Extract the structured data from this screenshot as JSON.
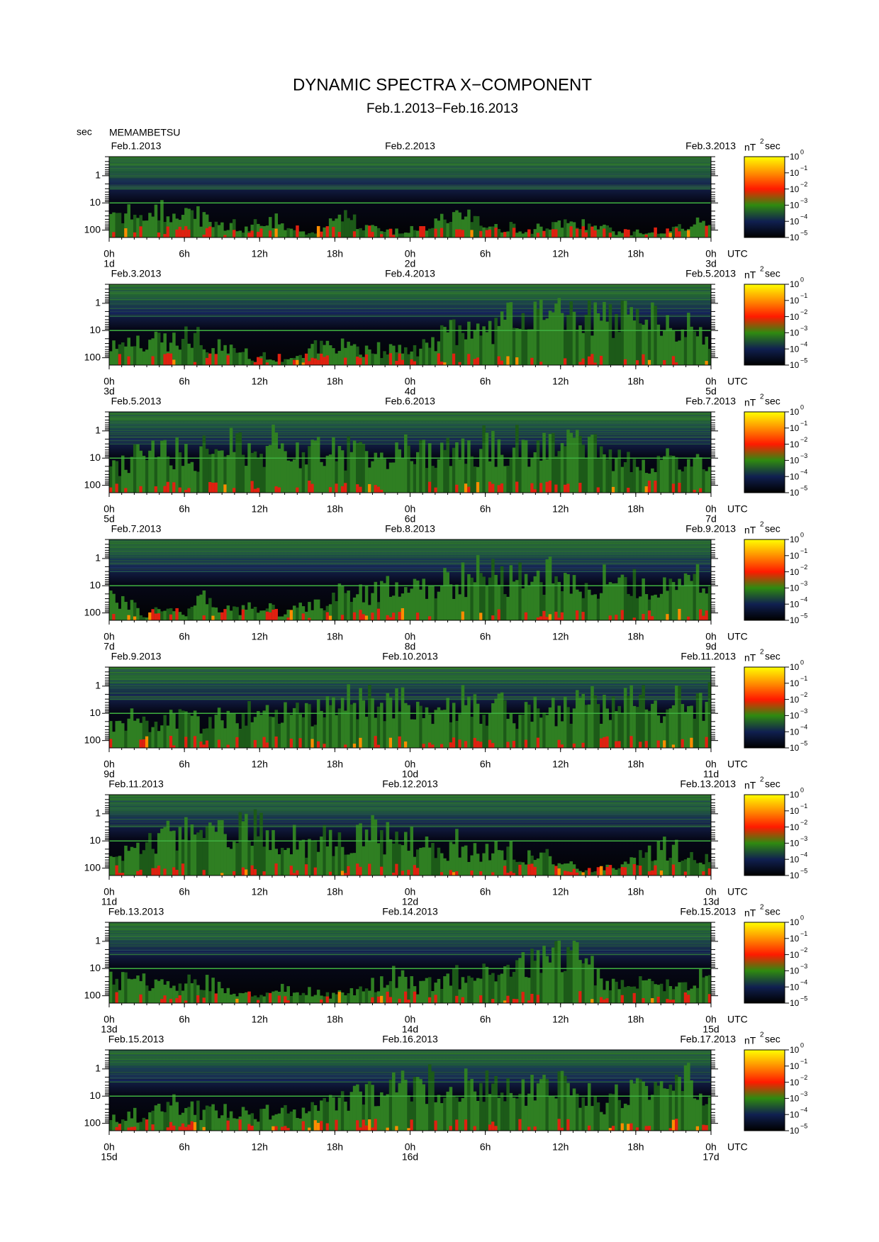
{
  "title": "DYNAMIC SPECTRA X−COMPONENT",
  "subtitle": "Feb.1.2013−Feb.16.2013",
  "y_unit": "sec",
  "station": "MEMAMBETSU",
  "time_zone": "UTC",
  "y_ticks": [
    1,
    10,
    100
  ],
  "x_tick_labels": [
    "0h",
    "6h",
    "12h",
    "18h",
    "0h",
    "6h",
    "12h",
    "18h",
    "0h"
  ],
  "colorbar_unit": {
    "main": "nT",
    "sup": "2",
    "tail": "sec"
  },
  "colorbar_ticks": [
    {
      "base": "10",
      "exponent": "0"
    },
    {
      "base": "10",
      "exponent": "−1"
    },
    {
      "base": "10",
      "exponent": "−2"
    },
    {
      "base": "10",
      "exponent": "−3"
    },
    {
      "base": "10",
      "exponent": "−4"
    },
    {
      "base": "10",
      "exponent": "−5"
    }
  ],
  "panels": [
    {
      "start_date": "Feb.1.2013",
      "mid_date": "Feb.2.2013",
      "end_date": "Feb.3.2013",
      "start_day": "1d",
      "mid_day": "2d",
      "end_day": "3d"
    },
    {
      "start_date": "Feb.3.2013",
      "mid_date": "Feb.4.2013",
      "end_date": "Feb.5.2013",
      "start_day": "3d",
      "mid_day": "4d",
      "end_day": "5d"
    },
    {
      "start_date": "Feb.5.2013",
      "mid_date": "Feb.6.2013",
      "end_date": "Feb.7.2013",
      "start_day": "5d",
      "mid_day": "6d",
      "end_day": "7d"
    },
    {
      "start_date": "Feb.7.2013",
      "mid_date": "Feb.8.2013",
      "end_date": "Feb.9.2013",
      "start_day": "7d",
      "mid_day": "8d",
      "end_day": "9d"
    },
    {
      "start_date": "Feb.9.2013",
      "mid_date": "Feb.10.2013",
      "end_date": "Feb.11.2013",
      "start_day": "9d",
      "mid_day": "10d",
      "end_day": "11d"
    },
    {
      "start_date": "Feb.11.2013",
      "mid_date": "Feb.12.2013",
      "end_date": "Feb.13.2013",
      "start_day": "11d",
      "mid_day": "12d",
      "end_day": "13d"
    },
    {
      "start_date": "Feb.13.2013",
      "mid_date": "Feb.14.2013",
      "end_date": "Feb.15.2013",
      "start_day": "13d",
      "mid_day": "14d",
      "end_day": "15d"
    },
    {
      "start_date": "Feb.15.2013",
      "mid_date": "Feb.16.2013",
      "end_date": "Feb.17.2013",
      "start_day": "15d",
      "mid_day": "16d",
      "end_day": "17d"
    }
  ]
}
